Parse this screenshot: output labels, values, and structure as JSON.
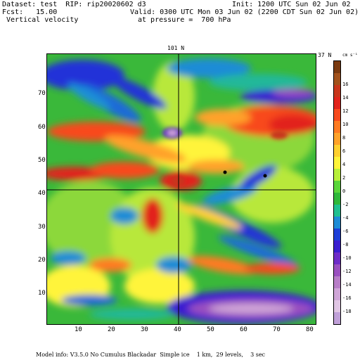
{
  "header": {
    "dataset_line": "Dataset: test  RIP: rip20020602 d3",
    "fcst_line": "Fcst:   15.00",
    "field_line": " Vertical velocity",
    "init_line": "Init: 1200 UTC Sun 02 Jun 02",
    "valid_line": "Valid: 0300 UTC Mon 03 Jun 02 (2200 CDT Sun 02 Jun 02)",
    "pressure_line": "at pressure =  700 hPa"
  },
  "section_labels": {
    "top": "101 N",
    "right": "37 N"
  },
  "x_axis": {
    "ticks": [
      10,
      20,
      30,
      40,
      50,
      60,
      70,
      80
    ]
  },
  "y_axis": {
    "ticks": [
      10,
      20,
      30,
      40,
      50,
      60,
      70
    ]
  },
  "colorbar": {
    "units": "cm s⁻¹",
    "labels": [
      "16",
      "14",
      "12",
      "10",
      "8",
      "6",
      "4",
      "2",
      "0",
      "-2",
      "-4",
      "-6",
      "-8",
      "-10",
      "-12",
      "-14",
      "-16",
      "-18"
    ],
    "colors": [
      "#7a3a10",
      "#a2521c",
      "#c8361c",
      "#e2241c",
      "#f84a1e",
      "#ff7a22",
      "#ffa22a",
      "#ffd030",
      "#fff43a",
      "#b8f03a",
      "#5ad63a",
      "#2fb83a",
      "#20c090",
      "#1e8cd6",
      "#1e3fd8",
      "#3a1ed0",
      "#6e2cc8",
      "#9a50c0",
      "#b87ec8",
      "#d0a6d8",
      "#e0c6e4",
      "#c0a0d8"
    ]
  },
  "footer": "Model info: V3.5.0 No Cumulus Blackadar  Simple ice    1 km,  29 levels,    3 sec"
}
